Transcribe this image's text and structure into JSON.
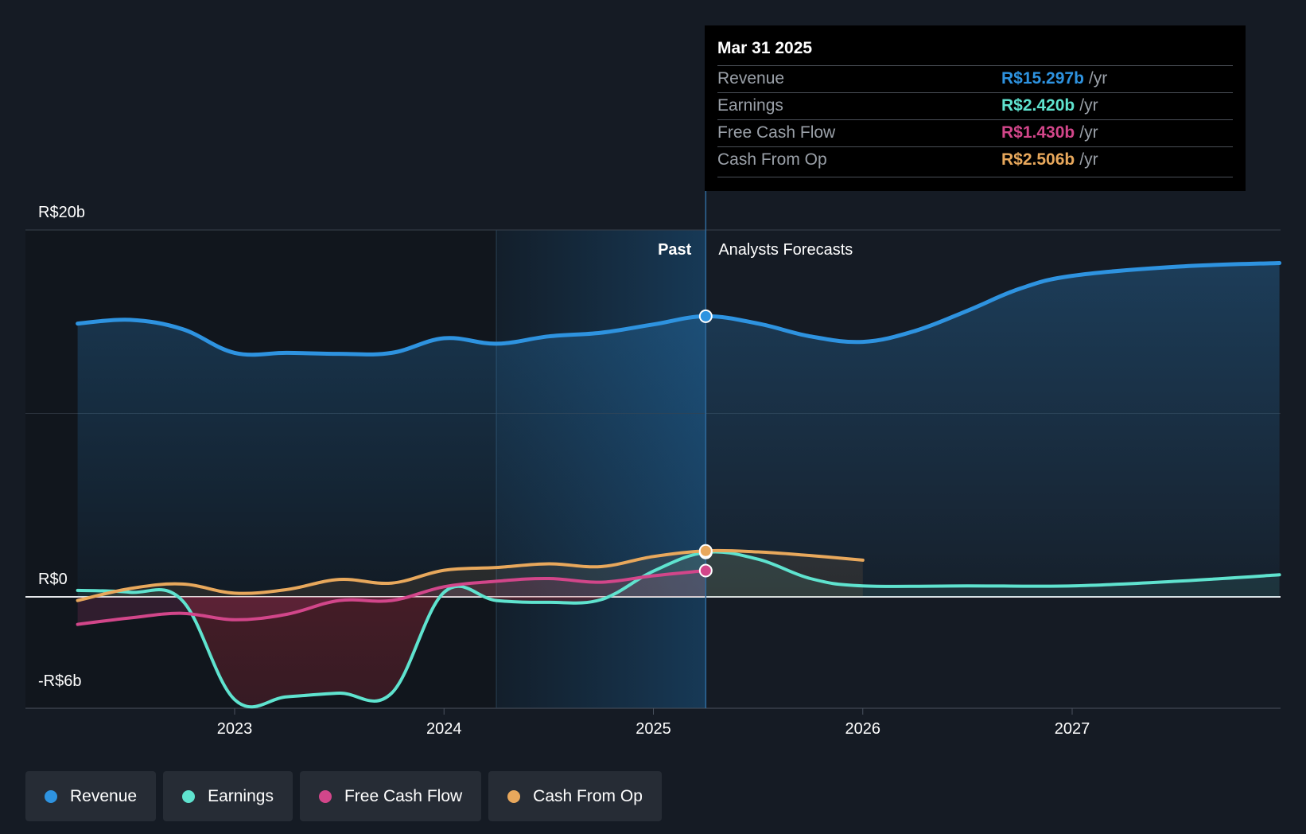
{
  "chart_data": {
    "type": "line",
    "currency_axis_labels": {
      "top": "R$20b",
      "zero": "R$0",
      "bottom": "-R$6b"
    },
    "ylim": [
      -6,
      20
    ],
    "x_ticks": [
      "2023",
      "2024",
      "2025",
      "2026",
      "2027"
    ],
    "x_tick_values": [
      2023,
      2024,
      2025,
      2026,
      2027
    ],
    "xlim": [
      2022.25,
      2027.99
    ],
    "divider_x": 2025.25,
    "shade_start_x": 2024.25,
    "past_label": "Past",
    "forecast_label": "Analysts Forecasts",
    "series": [
      {
        "name": "Revenue",
        "color": "#2e93e0",
        "points": [
          [
            2022.25,
            14.9
          ],
          [
            2022.5,
            15.1
          ],
          [
            2022.75,
            14.6
          ],
          [
            2023.0,
            13.3
          ],
          [
            2023.25,
            13.3
          ],
          [
            2023.5,
            13.25
          ],
          [
            2023.75,
            13.3
          ],
          [
            2024.0,
            14.1
          ],
          [
            2024.25,
            13.8
          ],
          [
            2024.5,
            14.2
          ],
          [
            2024.75,
            14.4
          ],
          [
            2025.0,
            14.85
          ],
          [
            2025.25,
            15.297
          ],
          [
            2025.5,
            14.9
          ],
          [
            2025.75,
            14.2
          ],
          [
            2026.0,
            13.9
          ],
          [
            2026.25,
            14.5
          ],
          [
            2026.5,
            15.6
          ],
          [
            2026.75,
            16.8
          ],
          [
            2027.0,
            17.5
          ],
          [
            2027.5,
            18.0
          ],
          [
            2027.99,
            18.2
          ]
        ],
        "marker_at": 2025.25
      },
      {
        "name": "Earnings",
        "color": "#5fe3cf",
        "points": [
          [
            2022.25,
            0.35
          ],
          [
            2022.5,
            0.25
          ],
          [
            2022.75,
            -0.2
          ],
          [
            2023.0,
            -5.6
          ],
          [
            2023.25,
            -5.45
          ],
          [
            2023.5,
            -5.25
          ],
          [
            2023.75,
            -5.25
          ],
          [
            2024.0,
            0.25
          ],
          [
            2024.25,
            -0.2
          ],
          [
            2024.5,
            -0.3
          ],
          [
            2024.75,
            -0.15
          ],
          [
            2025.0,
            1.4
          ],
          [
            2025.25,
            2.42
          ],
          [
            2025.5,
            2.05
          ],
          [
            2025.75,
            1.0
          ],
          [
            2026.0,
            0.6
          ],
          [
            2026.5,
            0.6
          ],
          [
            2027.0,
            0.6
          ],
          [
            2027.5,
            0.85
          ],
          [
            2027.99,
            1.2
          ]
        ],
        "marker_at": 2025.25
      },
      {
        "name": "Free Cash Flow",
        "color": "#d2468a",
        "points": [
          [
            2022.25,
            -1.5
          ],
          [
            2022.5,
            -1.15
          ],
          [
            2022.75,
            -0.9
          ],
          [
            2023.0,
            -1.25
          ],
          [
            2023.25,
            -0.95
          ],
          [
            2023.5,
            -0.2
          ],
          [
            2023.75,
            -0.2
          ],
          [
            2024.0,
            0.55
          ],
          [
            2024.25,
            0.85
          ],
          [
            2024.5,
            1.0
          ],
          [
            2024.75,
            0.8
          ],
          [
            2025.0,
            1.15
          ],
          [
            2025.25,
            1.43
          ]
        ],
        "marker_at": 2025.25
      },
      {
        "name": "Cash From Op",
        "color": "#e8a85c",
        "points": [
          [
            2022.25,
            -0.2
          ],
          [
            2022.5,
            0.45
          ],
          [
            2022.75,
            0.7
          ],
          [
            2023.0,
            0.2
          ],
          [
            2023.25,
            0.4
          ],
          [
            2023.5,
            0.95
          ],
          [
            2023.75,
            0.75
          ],
          [
            2024.0,
            1.45
          ],
          [
            2024.25,
            1.6
          ],
          [
            2024.5,
            1.8
          ],
          [
            2024.75,
            1.65
          ],
          [
            2025.0,
            2.2
          ],
          [
            2025.25,
            2.506
          ],
          [
            2025.5,
            2.45
          ],
          [
            2025.75,
            2.25
          ],
          [
            2026.0,
            2.0
          ]
        ],
        "marker_at": 2025.25
      }
    ]
  },
  "tooltip": {
    "date": "Mar 31 2025",
    "rows": [
      {
        "name": "Revenue",
        "value": "R$15.297b",
        "unit": "/yr",
        "color": "#2e93e0"
      },
      {
        "name": "Earnings",
        "value": "R$2.420b",
        "unit": "/yr",
        "color": "#5fe3cf"
      },
      {
        "name": "Free Cash Flow",
        "value": "R$1.430b",
        "unit": "/yr",
        "color": "#d2468a"
      },
      {
        "name": "Cash From Op",
        "value": "R$2.506b",
        "unit": "/yr",
        "color": "#e8a85c"
      }
    ]
  },
  "legend": {
    "items": [
      {
        "label": "Revenue",
        "color": "#2e93e0"
      },
      {
        "label": "Earnings",
        "color": "#5fe3cf"
      },
      {
        "label": "Free Cash Flow",
        "color": "#d2468a"
      },
      {
        "label": "Cash From Op",
        "color": "#e8a85c"
      }
    ]
  }
}
